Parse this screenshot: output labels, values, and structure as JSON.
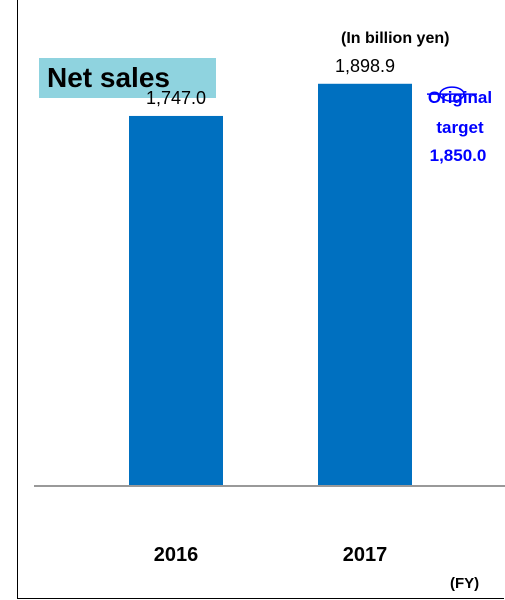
{
  "chart_data": {
    "type": "bar",
    "title": "Net sales",
    "unit_note": "(In billion yen)",
    "categories": [
      "2016",
      "2017"
    ],
    "values": [
      1747.0,
      1898.9
    ],
    "value_labels": [
      "1,747.0",
      "1,898.9"
    ],
    "x_unit": "(FY)",
    "target": {
      "label_line1": "Original",
      "label_line2": "target",
      "value": 1850.0,
      "value_label": "1,850.0",
      "category": "2017"
    },
    "ylim": [
      0,
      2200
    ],
    "grid": false,
    "legend": "none"
  },
  "colors": {
    "bar": "#0070c0",
    "title_background": "#8fd3df",
    "target": "#0000ff",
    "baseline": "#999999"
  }
}
